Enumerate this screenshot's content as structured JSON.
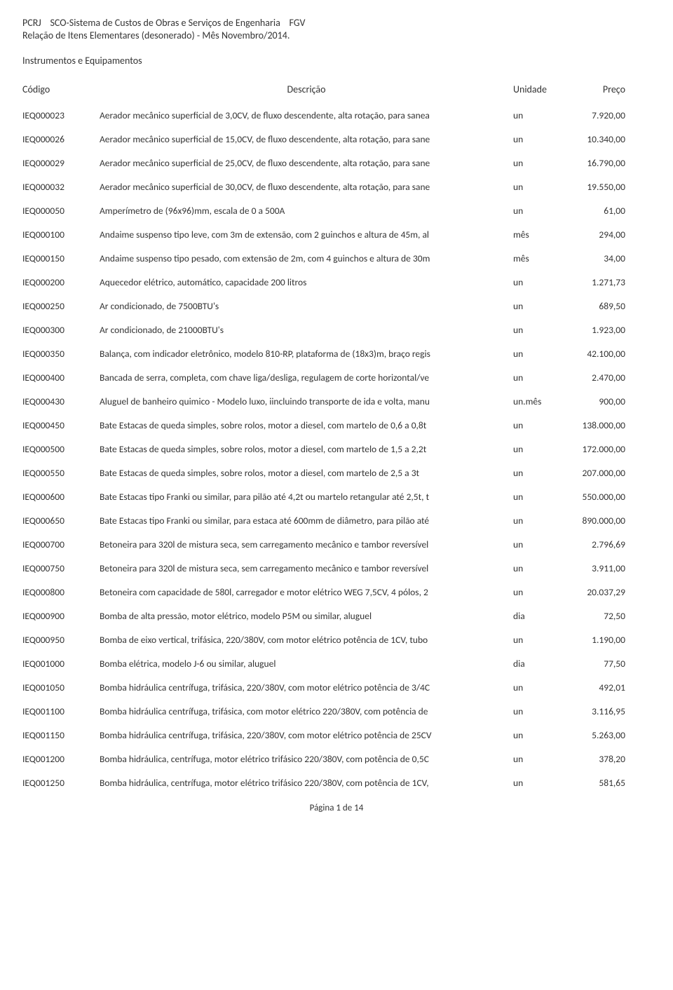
{
  "header": {
    "line1_left": "PCRJ",
    "line1_mid": "SCO-Sistema de Custos de Obras e Serviços de Engenharia",
    "line1_right": "FGV",
    "line2": "Relação de Itens Elementares (desonerado) - Mês Novembro/2014."
  },
  "section": "Instrumentos e Equipamentos",
  "columns": {
    "codigo": "Código",
    "descricao": "Descrição",
    "unidade": "Unidade",
    "preco": "Preço"
  },
  "rows": [
    {
      "codigo": "IEQ000023",
      "descricao": "Aerador mecânico superficial de 3,0CV, de fluxo descendente, alta rotação, para sanea",
      "unidade": "un",
      "preco": "7.920,00"
    },
    {
      "codigo": "IEQ000026",
      "descricao": "Aerador mecânico superficial de 15,0CV, de fluxo descendente, alta rotação, para sane",
      "unidade": "un",
      "preco": "10.340,00"
    },
    {
      "codigo": "IEQ000029",
      "descricao": "Aerador mecânico superficial de 25,0CV, de fluxo descendente, alta rotação, para sane",
      "unidade": "un",
      "preco": "16.790,00"
    },
    {
      "codigo": "IEQ000032",
      "descricao": "Aerador mecânico superficial de 30,0CV, de fluxo descendente, alta rotação, para sane",
      "unidade": "un",
      "preco": "19.550,00"
    },
    {
      "codigo": "IEQ000050",
      "descricao": "Amperímetro de (96x96)mm, escala de 0 a 500A",
      "unidade": "un",
      "preco": "61,00"
    },
    {
      "codigo": "IEQ000100",
      "descricao": "Andaime suspenso tipo leve, com 3m de extensão, com 2 guinchos e altura de 45m, al",
      "unidade": "mês",
      "preco": "294,00"
    },
    {
      "codigo": "IEQ000150",
      "descricao": "Andaime suspenso tipo pesado, com extensão de 2m, com 4 guinchos e altura de 30m",
      "unidade": "mês",
      "preco": "34,00"
    },
    {
      "codigo": "IEQ000200",
      "descricao": "Aquecedor elétrico, automático, capacidade 200 litros",
      "unidade": "un",
      "preco": "1.271,73"
    },
    {
      "codigo": "IEQ000250",
      "descricao": "Ar condicionado, de 7500BTU's",
      "unidade": "un",
      "preco": "689,50"
    },
    {
      "codigo": "IEQ000300",
      "descricao": "Ar condicionado, de 21000BTU's",
      "unidade": "un",
      "preco": "1.923,00"
    },
    {
      "codigo": "IEQ000350",
      "descricao": "Balança, com indicador eletrônico, modelo 810-RP, plataforma de (18x3)m, braço regis",
      "unidade": "un",
      "preco": "42.100,00"
    },
    {
      "codigo": "IEQ000400",
      "descricao": "Bancada de serra, completa, com chave liga/desliga, regulagem de corte horizontal/ve",
      "unidade": "un",
      "preco": "2.470,00"
    },
    {
      "codigo": "IEQ000430",
      "descricao": "Aluguel de banheiro quimico - Modelo luxo, iincluindo transporte de ida e volta, manu",
      "unidade": "un.mês",
      "preco": "900,00"
    },
    {
      "codigo": "IEQ000450",
      "descricao": "Bate Estacas de queda simples, sobre rolos, motor a diesel, com martelo de 0,6 a 0,8t",
      "unidade": "un",
      "preco": "138.000,00"
    },
    {
      "codigo": "IEQ000500",
      "descricao": "Bate Estacas de queda simples, sobre rolos, motor a diesel, com martelo de 1,5 a 2,2t",
      "unidade": "un",
      "preco": "172.000,00"
    },
    {
      "codigo": "IEQ000550",
      "descricao": "Bate Estacas de queda simples, sobre rolos, motor a diesel, com martelo de 2,5 a 3t",
      "unidade": "un",
      "preco": "207.000,00"
    },
    {
      "codigo": "IEQ000600",
      "descricao": "Bate Estacas tipo Franki ou similar, para pilão até 4,2t ou martelo retangular até 2,5t, t",
      "unidade": "un",
      "preco": "550.000,00"
    },
    {
      "codigo": "IEQ000650",
      "descricao": "Bate Estacas tipo Franki ou similar, para estaca até 600mm de diâmetro, para pilão até",
      "unidade": "un",
      "preco": "890.000,00"
    },
    {
      "codigo": "IEQ000700",
      "descricao": "Betoneira para 320l de mistura seca, sem carregamento mecânico e tambor reversível",
      "unidade": "un",
      "preco": "2.796,69"
    },
    {
      "codigo": "IEQ000750",
      "descricao": "Betoneira para 320l de mistura seca, sem carregamento mecânico e tambor reversível",
      "unidade": "un",
      "preco": "3.911,00"
    },
    {
      "codigo": "IEQ000800",
      "descricao": "Betoneira com capacidade de 580l, carregador e motor elétrico WEG 7,5CV, 4 pólos, 2",
      "unidade": "un",
      "preco": "20.037,29"
    },
    {
      "codigo": "IEQ000900",
      "descricao": "Bomba de alta pressão, motor elétrico, modelo P5M ou similar, aluguel",
      "unidade": "dia",
      "preco": "72,50"
    },
    {
      "codigo": "IEQ000950",
      "descricao": "Bomba de eixo vertical, trifásica, 220/380V, com motor elétrico potência de 1CV, tubo",
      "unidade": "un",
      "preco": "1.190,00"
    },
    {
      "codigo": "IEQ001000",
      "descricao": "Bomba elétrica, modelo J-6 ou similar, aluguel",
      "unidade": "dia",
      "preco": "77,50"
    },
    {
      "codigo": "IEQ001050",
      "descricao": "Bomba hidráulica centrífuga, trifásica, 220/380V, com motor elétrico potência de 3/4C",
      "unidade": "un",
      "preco": "492,01"
    },
    {
      "codigo": "IEQ001100",
      "descricao": "Bomba hidráulica centrífuga, trifásica, com motor elétrico 220/380V, com potência de",
      "unidade": "un",
      "preco": "3.116,95"
    },
    {
      "codigo": "IEQ001150",
      "descricao": "Bomba hidráulica centrífuga, trifásica, 220/380V, com motor elétrico potência de 25CV",
      "unidade": "un",
      "preco": "5.263,00"
    },
    {
      "codigo": "IEQ001200",
      "descricao": "Bomba hidráulica, centrífuga, motor elétrico trifásico 220/380V, com potência de 0,5C",
      "unidade": "un",
      "preco": "378,20"
    },
    {
      "codigo": "IEQ001250",
      "descricao": "Bomba hidráulica, centrífuga, motor elétrico trifásico 220/380V, com potência de 1CV,",
      "unidade": "un",
      "preco": "581,65"
    }
  ],
  "footer": "Página 1 de 14"
}
